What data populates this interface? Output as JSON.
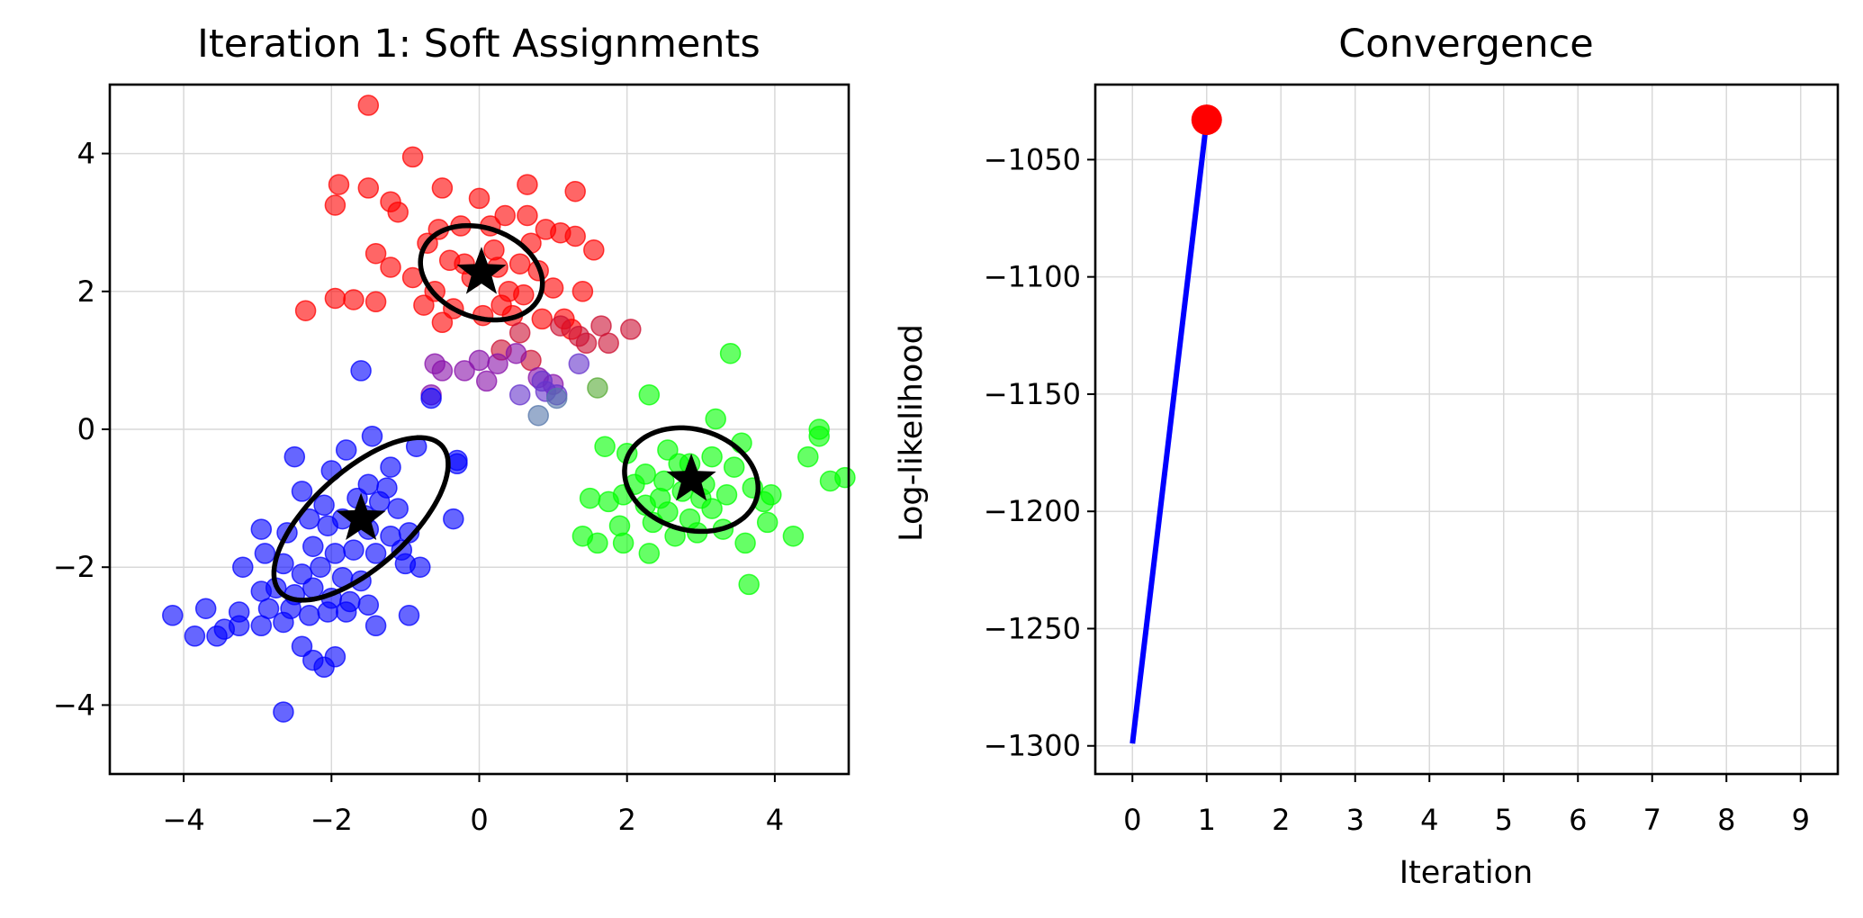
{
  "chart_data": [
    {
      "type": "scatter",
      "title": "Iteration 1: Soft Assignments",
      "xlabel": "",
      "ylabel": "",
      "xlim": [
        -5,
        5
      ],
      "ylim": [
        -5,
        5
      ],
      "xticks": [
        -4,
        -2,
        0,
        2,
        4
      ],
      "yticks": [
        -4,
        -2,
        0,
        2,
        4
      ],
      "xtick_labels": [
        "−4",
        "−2",
        "0",
        "2",
        "4"
      ],
      "ytick_labels": [
        "−4",
        "−2",
        "0",
        "2",
        "4"
      ],
      "grid": true,
      "series": [
        {
          "color": "#ff0000",
          "points": [
            [
              -1.5,
              4.7
            ],
            [
              -0.9,
              3.95
            ],
            [
              -1.9,
              3.55
            ],
            [
              -1.5,
              3.5
            ],
            [
              -0.5,
              3.5
            ],
            [
              -1.2,
              3.3
            ],
            [
              0,
              3.35
            ],
            [
              -1.95,
              3.25
            ],
            [
              -1.1,
              3.15
            ],
            [
              1.3,
              3.45
            ],
            [
              0.65,
              3.55
            ],
            [
              -1.4,
              2.55
            ],
            [
              -1.2,
              2.35
            ],
            [
              1.55,
              2.6
            ],
            [
              1.3,
              2.8
            ],
            [
              1.1,
              2.85
            ],
            [
              0.9,
              2.9
            ],
            [
              0.65,
              3.1
            ],
            [
              0.35,
              3.1
            ],
            [
              0.15,
              2.95
            ],
            [
              -0.25,
              2.95
            ],
            [
              -0.55,
              2.9
            ],
            [
              -0.7,
              2.7
            ],
            [
              -0.4,
              2.45
            ],
            [
              -0.1,
              2.2
            ],
            [
              0.25,
              2.35
            ],
            [
              0.55,
              2.4
            ],
            [
              0.8,
              2.3
            ],
            [
              1.0,
              2.05
            ],
            [
              0.6,
              1.95
            ],
            [
              0.3,
              1.8
            ],
            [
              0.05,
              1.65
            ],
            [
              -0.35,
              1.75
            ],
            [
              -0.6,
              2.0
            ],
            [
              -0.75,
              1.8
            ],
            [
              -0.5,
              1.55
            ],
            [
              0.45,
              1.65
            ],
            [
              0.85,
              1.6
            ],
            [
              1.25,
              1.45
            ],
            [
              1.4,
              2.0
            ],
            [
              -1.95,
              1.9
            ],
            [
              -1.7,
              1.88
            ],
            [
              -1.4,
              1.85
            ],
            [
              -2.35,
              1.72
            ],
            [
              0.2,
              2.6
            ],
            [
              0.4,
              2.0
            ],
            [
              -0.2,
              2.4
            ],
            [
              0.7,
              2.7
            ],
            [
              -0.9,
              2.2
            ],
            [
              1.15,
              1.6
            ]
          ]
        },
        {
          "color": "#cc1133",
          "points": [
            [
              1.45,
              1.25
            ],
            [
              1.65,
              1.5
            ],
            [
              2.05,
              1.45
            ],
            [
              1.75,
              1.25
            ],
            [
              1.35,
              1.35
            ],
            [
              1.1,
              1.5
            ],
            [
              0.55,
              1.4
            ],
            [
              0.3,
              1.15
            ],
            [
              0.7,
              1.0
            ]
          ]
        },
        {
          "color": "#8811aa",
          "points": [
            [
              -0.6,
              0.95
            ],
            [
              -0.2,
              0.85
            ],
            [
              0.0,
              1.0
            ],
            [
              0.25,
              0.95
            ],
            [
              -0.5,
              0.85
            ],
            [
              0.5,
              1.1
            ],
            [
              0.1,
              0.7
            ],
            [
              0.8,
              0.75
            ],
            [
              1.0,
              0.65
            ],
            [
              -0.65,
              0.5
            ]
          ]
        },
        {
          "color": "#6633cc",
          "points": [
            [
              0.9,
              0.55
            ],
            [
              1.05,
              0.5
            ],
            [
              0.55,
              0.5
            ],
            [
              0.85,
              0.7
            ],
            [
              1.35,
              0.95
            ]
          ]
        },
        {
          "color": "#5577aa",
          "points": [
            [
              1.05,
              0.45
            ],
            [
              0.8,
              0.2
            ]
          ]
        },
        {
          "color": "#55aa33",
          "points": [
            [
              1.6,
              0.6
            ]
          ]
        },
        {
          "color": "#0000ff",
          "points": [
            [
              -1.6,
              0.85
            ],
            [
              -0.65,
              0.45
            ],
            [
              -1.45,
              -0.1
            ],
            [
              -0.3,
              -0.5
            ],
            [
              -0.85,
              -0.25
            ],
            [
              -2.5,
              -0.4
            ],
            [
              -1.8,
              -0.3
            ],
            [
              -1.2,
              -0.55
            ],
            [
              -2.0,
              -0.6
            ],
            [
              -1.5,
              -0.8
            ],
            [
              -1.65,
              -1.0
            ],
            [
              -1.35,
              -1.05
            ],
            [
              -2.4,
              -0.9
            ],
            [
              -2.1,
              -1.1
            ],
            [
              -1.85,
              -1.3
            ],
            [
              -1.5,
              -1.45
            ],
            [
              -1.2,
              -1.55
            ],
            [
              -0.95,
              -1.5
            ],
            [
              -2.95,
              -1.45
            ],
            [
              -2.6,
              -1.5
            ],
            [
              -2.25,
              -1.7
            ],
            [
              -1.95,
              -1.8
            ],
            [
              -1.7,
              -1.75
            ],
            [
              -1.4,
              -1.8
            ],
            [
              -1.05,
              -1.75
            ],
            [
              -0.35,
              -1.3
            ],
            [
              -0.8,
              -2.0
            ],
            [
              -2.9,
              -1.8
            ],
            [
              -2.65,
              -1.95
            ],
            [
              -2.4,
              -2.1
            ],
            [
              -2.15,
              -2.0
            ],
            [
              -1.85,
              -2.15
            ],
            [
              -1.6,
              -2.2
            ],
            [
              -3.2,
              -2.0
            ],
            [
              -2.75,
              -2.3
            ],
            [
              -2.5,
              -2.4
            ],
            [
              -2.25,
              -2.3
            ],
            [
              -2.0,
              -2.45
            ],
            [
              -1.75,
              -2.5
            ],
            [
              -1.5,
              -2.55
            ],
            [
              -2.95,
              -2.35
            ],
            [
              -3.25,
              -2.65
            ],
            [
              -2.85,
              -2.6
            ],
            [
              -2.55,
              -2.6
            ],
            [
              -2.3,
              -2.7
            ],
            [
              -2.05,
              -2.65
            ],
            [
              -1.8,
              -2.65
            ],
            [
              -0.95,
              -2.7
            ],
            [
              -1.4,
              -2.85
            ],
            [
              -2.65,
              -2.8
            ],
            [
              -2.95,
              -2.85
            ],
            [
              -3.25,
              -2.85
            ],
            [
              -3.45,
              -2.9
            ],
            [
              -3.7,
              -2.6
            ],
            [
              -4.15,
              -2.7
            ],
            [
              -3.85,
              -3.0
            ],
            [
              -3.55,
              -3.0
            ],
            [
              -2.4,
              -3.15
            ],
            [
              -2.25,
              -3.35
            ],
            [
              -2.1,
              -3.45
            ],
            [
              -1.95,
              -3.3
            ],
            [
              -2.65,
              -4.1
            ],
            [
              -0.3,
              -0.45
            ],
            [
              -1.25,
              -0.85
            ],
            [
              -2.05,
              -1.4
            ],
            [
              -1.55,
              -1.25
            ],
            [
              -1.1,
              -1.15
            ],
            [
              -2.3,
              -1.3
            ],
            [
              -1.0,
              -1.95
            ]
          ]
        },
        {
          "color": "#00ff00",
          "points": [
            [
              3.4,
              1.1
            ],
            [
              2.3,
              0.5
            ],
            [
              3.2,
              0.15
            ],
            [
              4.6,
              0.0
            ],
            [
              1.7,
              -0.25
            ],
            [
              2.0,
              -0.35
            ],
            [
              2.55,
              -0.3
            ],
            [
              2.85,
              -0.5
            ],
            [
              3.15,
              -0.4
            ],
            [
              3.45,
              -0.55
            ],
            [
              4.45,
              -0.4
            ],
            [
              4.6,
              -0.1
            ],
            [
              2.25,
              -0.65
            ],
            [
              2.5,
              -0.75
            ],
            [
              2.75,
              -0.9
            ],
            [
              3.05,
              -0.8
            ],
            [
              3.35,
              -0.95
            ],
            [
              3.7,
              -0.85
            ],
            [
              3.95,
              -0.95
            ],
            [
              4.75,
              -0.75
            ],
            [
              4.95,
              -0.7
            ],
            [
              1.5,
              -1.0
            ],
            [
              1.75,
              -1.05
            ],
            [
              1.95,
              -0.95
            ],
            [
              2.25,
              -1.1
            ],
            [
              2.55,
              -1.2
            ],
            [
              2.85,
              -1.3
            ],
            [
              3.15,
              -1.15
            ],
            [
              3.85,
              -1.05
            ],
            [
              3.9,
              -1.35
            ],
            [
              1.4,
              -1.55
            ],
            [
              1.6,
              -1.65
            ],
            [
              1.9,
              -1.4
            ],
            [
              1.95,
              -1.65
            ],
            [
              2.35,
              -1.35
            ],
            [
              2.65,
              -1.55
            ],
            [
              2.95,
              -1.5
            ],
            [
              3.3,
              -1.45
            ],
            [
              3.6,
              -1.65
            ],
            [
              4.25,
              -1.55
            ],
            [
              2.3,
              -1.8
            ],
            [
              3.65,
              -2.25
            ],
            [
              2.7,
              -0.5
            ],
            [
              3.55,
              -0.2
            ],
            [
              2.1,
              -0.8
            ],
            [
              2.45,
              -1.0
            ],
            [
              3.0,
              -1.0
            ]
          ]
        }
      ],
      "ellipses": [
        {
          "center": [
            0.03,
            2.27
          ],
          "width": 1.72,
          "height": 1.28,
          "angle": -25
        },
        {
          "center": [
            -1.6,
            -1.3
          ],
          "width": 3.05,
          "height": 1.35,
          "angle": 45
        },
        {
          "center": [
            2.87,
            -0.73
          ],
          "width": 1.85,
          "height": 1.45,
          "angle": -20
        }
      ],
      "centers": [
        [
          0.03,
          2.27
        ],
        [
          -1.6,
          -1.3
        ],
        [
          2.87,
          -0.73
        ]
      ]
    },
    {
      "type": "line",
      "title": "Convergence",
      "xlabel": "Iteration",
      "ylabel": "Log-likelihood",
      "xlim": [
        -0.5,
        9.5
      ],
      "ylim": [
        -1312,
        -1018
      ],
      "xticks": [
        0,
        1,
        2,
        3,
        4,
        5,
        6,
        7,
        8,
        9
      ],
      "xtick_labels": [
        "0",
        "1",
        "2",
        "3",
        "4",
        "5",
        "6",
        "7",
        "8",
        "9"
      ],
      "yticks": [
        -1050,
        -1100,
        -1150,
        -1200,
        -1250,
        -1300
      ],
      "ytick_labels": [
        "−1050",
        "−1100",
        "−1150",
        "−1200",
        "−1250",
        "−1300"
      ],
      "grid": true,
      "series": [
        {
          "color": "#0000ff",
          "x": [
            0,
            1
          ],
          "values": [
            -1299,
            -1033
          ]
        }
      ],
      "current_point": {
        "x": 1,
        "y": -1033,
        "color": "#ff0000"
      }
    }
  ]
}
